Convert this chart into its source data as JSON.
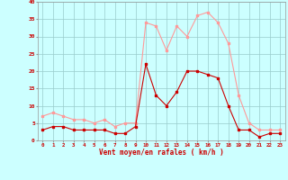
{
  "x": [
    0,
    1,
    2,
    3,
    4,
    5,
    6,
    7,
    8,
    9,
    10,
    11,
    12,
    13,
    14,
    15,
    16,
    17,
    18,
    19,
    20,
    21,
    22,
    23
  ],
  "wind_avg": [
    3,
    4,
    4,
    3,
    3,
    3,
    3,
    2,
    2,
    4,
    22,
    13,
    10,
    14,
    20,
    20,
    19,
    18,
    10,
    3,
    3,
    1,
    2,
    2
  ],
  "wind_gust": [
    7,
    8,
    7,
    6,
    6,
    5,
    6,
    4,
    5,
    5,
    34,
    33,
    26,
    33,
    30,
    36,
    37,
    34,
    28,
    13,
    5,
    3,
    3,
    3
  ],
  "avg_color": "#cc0000",
  "gust_color": "#ff9999",
  "bg_color": "#ccffff",
  "grid_color": "#99cccc",
  "xlabel": "Vent moyen/en rafales ( km/h )",
  "xlabel_color": "#cc0000",
  "ytick_vals": [
    0,
    5,
    10,
    15,
    20,
    25,
    30,
    35,
    40
  ],
  "ylim": [
    0,
    40
  ],
  "xlim_min": -0.5,
  "xlim_max": 23.5
}
